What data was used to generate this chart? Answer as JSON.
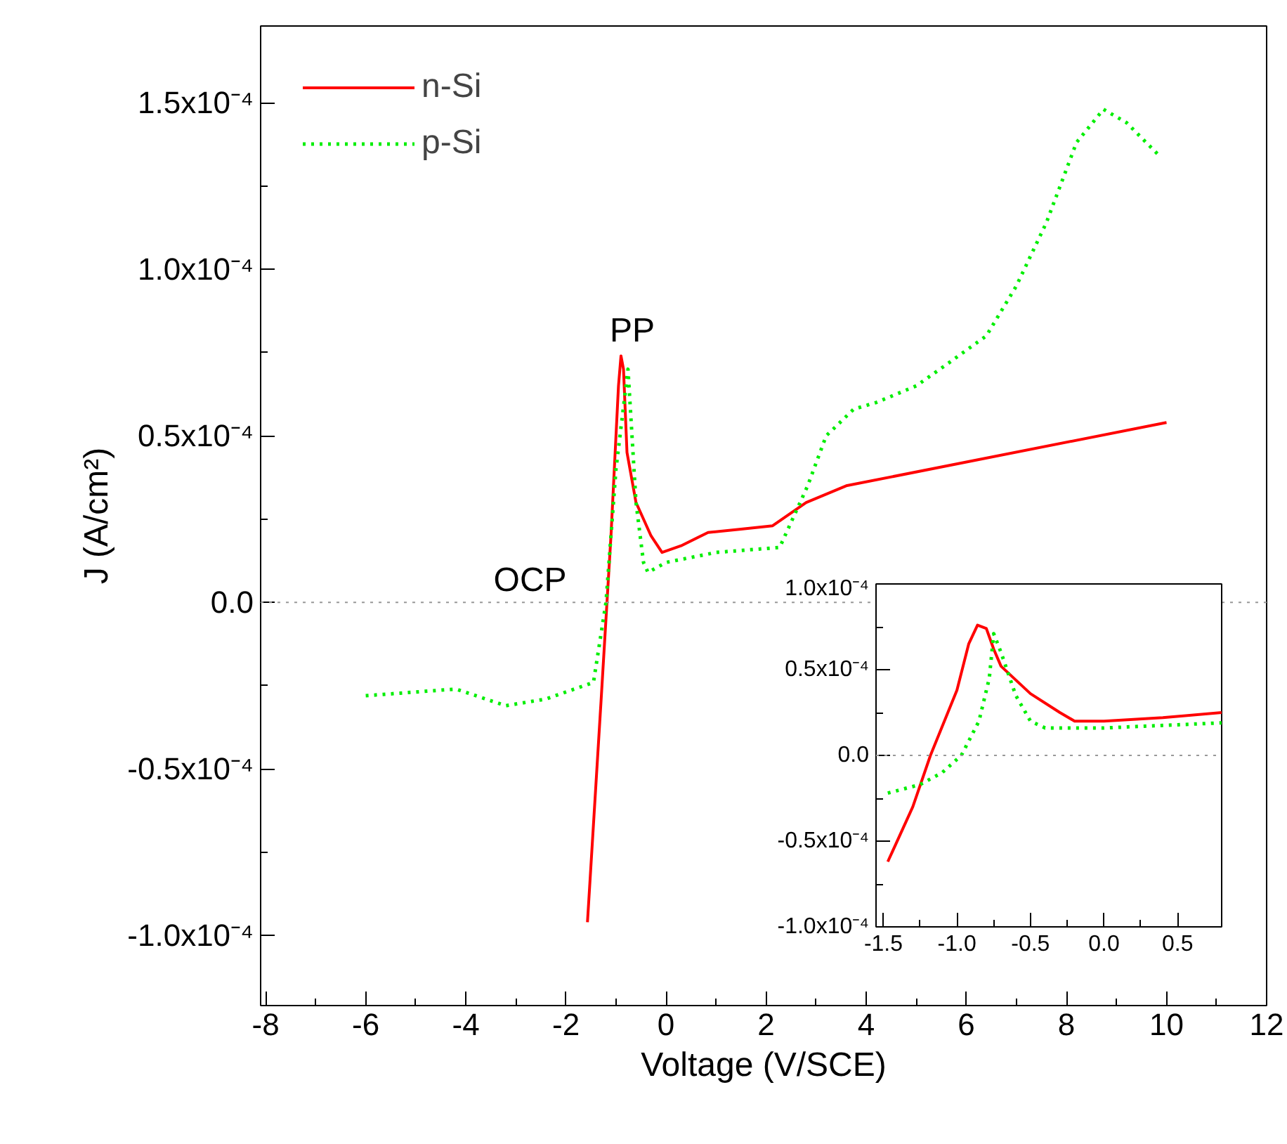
{
  "chart_data": [
    {
      "type": "line",
      "xlabel": "Voltage (V/SCE)",
      "ylabel": "J (A/cm²)",
      "xlim": [
        -8.1,
        12
      ],
      "ylim": [
        -0.000121,
        0.000173
      ],
      "xticks": [
        -8,
        -6,
        -4,
        -2,
        0,
        2,
        4,
        6,
        8,
        10,
        12
      ],
      "yticks": [
        {
          "value": -0.0001,
          "label": "-1.0x10⁻⁴"
        },
        {
          "value": -5e-05,
          "label": "-0.5x10⁻⁴"
        },
        {
          "value": 0,
          "label": "0.0"
        },
        {
          "value": 5e-05,
          "label": "0.5x10⁻⁴"
        },
        {
          "value": 0.0001,
          "label": "1.0x10⁻⁴"
        },
        {
          "value": 0.00015,
          "label": "1.5x10⁻⁴"
        }
      ],
      "grid": false,
      "legend": "top left",
      "ref_lines": [
        {
          "axis": "y",
          "value": 0,
          "color": "#999999",
          "line_style": "dotted"
        }
      ],
      "annotations": [
        {
          "text": "PP",
          "x": -0.9,
          "y": 7.4e-05
        },
        {
          "text": "OCP",
          "x": -1.2,
          "y": 0
        }
      ],
      "series": [
        {
          "name": "n-Si",
          "color": "#ff0000",
          "line_style": "solid",
          "x": [
            -1.57,
            -1.3,
            -1.1,
            -0.95,
            -0.9,
            -0.85,
            -0.78,
            -0.6,
            -0.3,
            -0.08,
            0.3,
            0.84,
            1.5,
            2.13,
            2.8,
            3.6,
            10.0
          ],
          "values": [
            -9.6e-05,
            -3e-05,
            2e-05,
            6.5e-05,
            7.4e-05,
            7e-05,
            4.5e-05,
            3e-05,
            2e-05,
            1.5e-05,
            1.7e-05,
            2.1e-05,
            2.2e-05,
            2.3e-05,
            3e-05,
            3.5e-05,
            5.4e-05
          ]
        },
        {
          "name": "p-Si",
          "color": "#00ee00",
          "line_style": "dotted",
          "x": [
            -6,
            -4.2,
            -3.2,
            -2.4,
            -1.45,
            -1.2,
            -1.0,
            -0.76,
            -0.6,
            -0.45,
            -0.36,
            0,
            1,
            2.27,
            2.83,
            3.2,
            3.75,
            4.2,
            5,
            5.66,
            6.4,
            7.0,
            7.6,
            8.2,
            8.74,
            9.2,
            9.86
          ],
          "values": [
            -2.8e-05,
            -2.6e-05,
            -3.1e-05,
            -2.9e-05,
            -2.4e-05,
            0,
            4e-05,
            7e-05,
            3e-05,
            1.2e-05,
            9e-06,
            1.2e-05,
            1.5e-05,
            1.65e-05,
            3.5e-05,
            5e-05,
            5.8e-05,
            6e-05,
            6.5e-05,
            7.2e-05,
            8e-05,
            9.5e-05,
            0.000114,
            0.000138,
            0.000148,
            0.000144,
            0.000134
          ]
        }
      ]
    },
    {
      "type": "line",
      "xlim": [
        -1.55,
        0.8
      ],
      "ylim": [
        -0.0001,
        0.0001
      ],
      "xticks": [
        {
          "value": -1.5,
          "label": "-1.5"
        },
        {
          "value": -1.0,
          "label": "-1.0"
        },
        {
          "value": -0.5,
          "label": "-0.5"
        },
        {
          "value": 0,
          "label": "0.0"
        },
        {
          "value": 0.5,
          "label": "0.5"
        }
      ],
      "yticks": [
        {
          "value": -0.0001,
          "label": "-1.0x10⁻⁴"
        },
        {
          "value": -5e-05,
          "label": "-0.5x10⁻⁴"
        },
        {
          "value": 0,
          "label": "0.0"
        },
        {
          "value": 5e-05,
          "label": "0.5x10⁻⁴"
        },
        {
          "value": 0.0001,
          "label": "1.0x10⁻⁴"
        }
      ],
      "grid": false,
      "legend": false,
      "ref_lines": [
        {
          "axis": "y",
          "value": 0,
          "color": "#999999",
          "line_style": "dotted"
        }
      ],
      "series": [
        {
          "color": "#ff0000",
          "line_style": "solid",
          "x": [
            -1.47,
            -1.3,
            -1.18,
            -1.0,
            -0.92,
            -0.86,
            -0.8,
            -0.75,
            -0.7,
            -0.5,
            -0.3,
            -0.2,
            0,
            0.4,
            0.8
          ],
          "values": [
            -6.2e-05,
            -3e-05,
            0,
            3.8e-05,
            6.5e-05,
            7.6e-05,
            7.4e-05,
            6.2e-05,
            5.2e-05,
            3.6e-05,
            2.5e-05,
            2e-05,
            2e-05,
            2.2e-05,
            2.5e-05
          ]
        },
        {
          "color": "#00ee00",
          "line_style": "dotted",
          "x": [
            -1.47,
            -1.25,
            -1.1,
            -0.97,
            -0.85,
            -0.78,
            -0.75,
            -0.7,
            -0.6,
            -0.5,
            -0.4,
            0,
            0.8
          ],
          "values": [
            -2.2e-05,
            -1.7e-05,
            -1e-05,
            0,
            2e-05,
            4.5e-05,
            7.1e-05,
            6e-05,
            3.5e-05,
            2e-05,
            1.6e-05,
            1.6e-05,
            1.9e-05
          ]
        }
      ]
    }
  ]
}
